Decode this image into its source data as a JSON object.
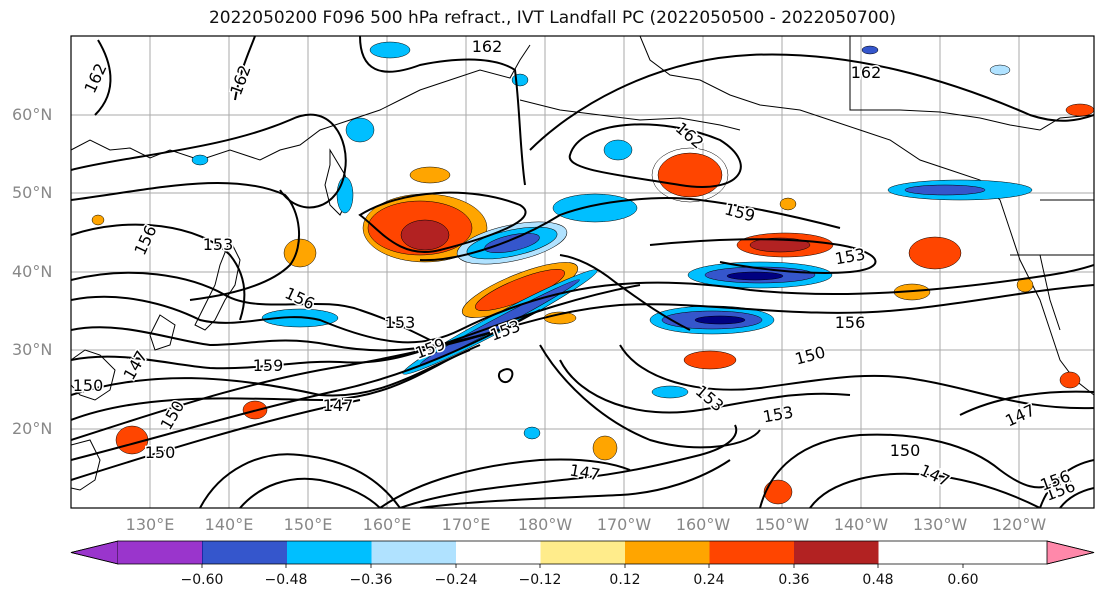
{
  "title": "2022050200 F096 500 hPa refract., IVT Landfall PC (2022050500 - 2022050700)",
  "lat_labels": [
    "60°N",
    "50°N",
    "40°N",
    "30°N",
    "20°N"
  ],
  "lon_labels": [
    "130°E",
    "140°E",
    "150°E",
    "160°E",
    "170°E",
    "180°W",
    "170°W",
    "160°W",
    "150°W",
    "140°W",
    "130°W",
    "120°W"
  ],
  "colorbar": {
    "ticks": [
      "−0.60",
      "−0.48",
      "−0.36",
      "−0.24",
      "−0.12",
      "0.12",
      "0.24",
      "0.36",
      "0.48",
      "0.60"
    ],
    "colors": [
      "#9a35cc",
      "#000080",
      "#3556cc",
      "#00bfff",
      "#b0e2ff",
      "#ffffff",
      "#ffec8b",
      "#ffa500",
      "#ff4500",
      "#b22222",
      "#ff88aa"
    ]
  },
  "contour_labels": [
    "162",
    "162",
    "162",
    "162",
    "162",
    "159",
    "159",
    "159",
    "156",
    "156",
    "156",
    "156",
    "153",
    "153",
    "153",
    "153",
    "153",
    "150",
    "150",
    "150",
    "150",
    "147",
    "147",
    "147",
    "147",
    "147",
    "150",
    "153",
    "156"
  ]
}
